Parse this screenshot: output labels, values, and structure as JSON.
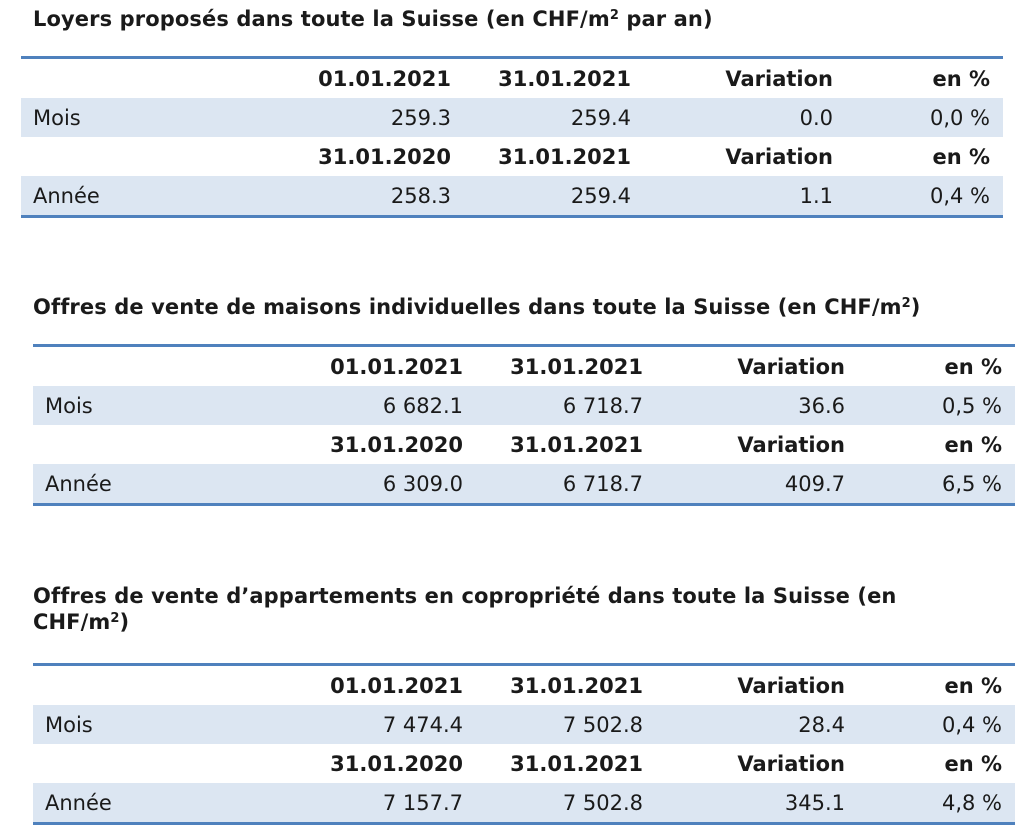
{
  "sections": [
    {
      "title": "Loyers proposés dans toute la Suisse (en CHF/m",
      "title_sup": "2",
      "title_end": " par an)",
      "header1": {
        "col1": "01.01.2021",
        "col2": "31.01.2021",
        "col3": "Variation",
        "col4": "en %"
      },
      "row1": {
        "label": "Mois",
        "col1": "259.3",
        "col2": "259.4",
        "col3": "0.0",
        "col4": "0,0 %"
      },
      "header2": {
        "col1": "31.01.2020",
        "col2": "31.01.2021",
        "col3": "Variation",
        "col4": "en %"
      },
      "row2": {
        "label": "Année",
        "col1": "258.3",
        "col2": "259.4",
        "col3": "1.1",
        "col4": "0,4 %"
      }
    },
    {
      "title": "Offres de vente de maisons individuelles dans toute la Suisse (en CHF/m",
      "title_sup": "2",
      "title_end": ")",
      "header1": {
        "col1": "01.01.2021",
        "col2": "31.01.2021",
        "col3": "Variation",
        "col4": "en %"
      },
      "row1": {
        "label": "Mois",
        "col1": "6 682.1",
        "col2": "6 718.7",
        "col3": "36.6",
        "col4": "0,5 %"
      },
      "header2": {
        "col1": "31.01.2020",
        "col2": "31.01.2021",
        "col3": "Variation",
        "col4": "en %"
      },
      "row2": {
        "label": "Année",
        "col1": "6 309.0",
        "col2": "6 718.7",
        "col3": "409.7",
        "col4": "6,5 %"
      }
    },
    {
      "title_line1": "Offres de vente d’appartements en copropriété dans toute la Suisse (en",
      "title_line2": "CHF/m",
      "title_sup": "2",
      "title_end": ")",
      "header1": {
        "col1": "01.01.2021",
        "col2": "31.01.2021",
        "col3": "Variation",
        "col4": "en %"
      },
      "row1": {
        "label": "Mois",
        "col1": "7 474.4",
        "col2": "7 502.8",
        "col3": "28.4",
        "col4": "0,4 %"
      },
      "header2": {
        "col1": "31.01.2020",
        "col2": "31.01.2021",
        "col3": "Variation",
        "col4": "en %"
      },
      "row2": {
        "label": "Année",
        "col1": "7 157.7",
        "col2": "7 502.8",
        "col3": "345.1",
        "col4": "4,8 %"
      }
    }
  ]
}
